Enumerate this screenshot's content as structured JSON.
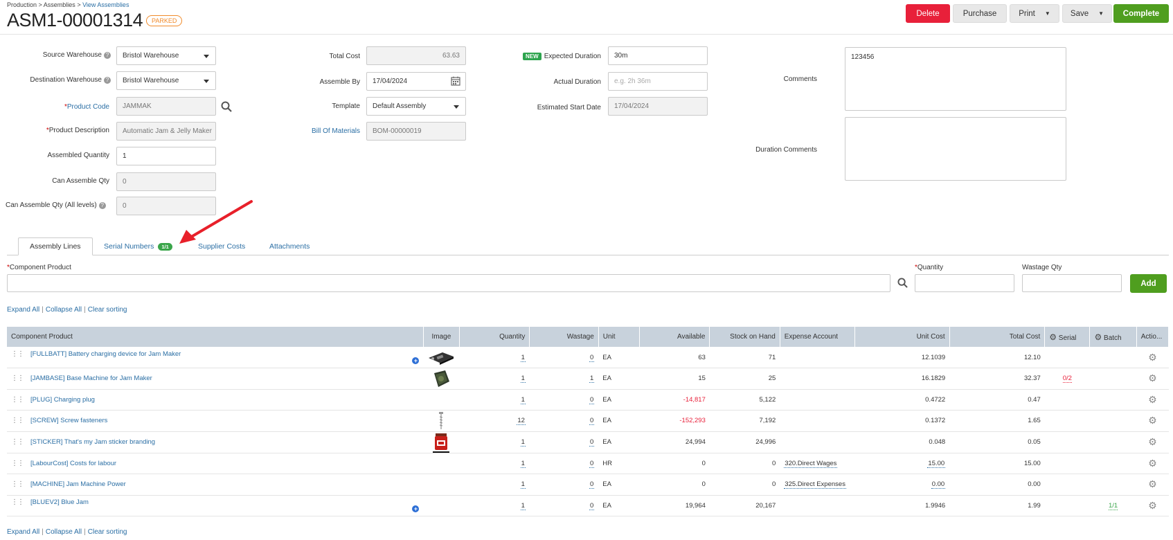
{
  "breadcrumb": {
    "part1": "Production",
    "sep": " > ",
    "part2": "Assemblies",
    "part3": "View Assemblies"
  },
  "header": {
    "title": "ASM1-00001314",
    "status": "PARKED"
  },
  "toolbar": {
    "delete": "Delete",
    "purchase": "Purchase",
    "print": "Print",
    "save": "Save",
    "complete": "Complete"
  },
  "form": {
    "source_warehouse_label": "Source Warehouse",
    "source_warehouse": "Bristol Warehouse",
    "destination_warehouse_label": "Destination Warehouse",
    "destination_warehouse": "Bristol Warehouse",
    "product_code_label": "Product Code",
    "product_code": "JAMMAK",
    "product_description_label": "Product Description",
    "product_description": "Automatic Jam & Jelly Maker",
    "assembled_quantity_label": "Assembled Quantity",
    "assembled_quantity": "1",
    "can_assemble_qty_label": "Can Assemble Qty",
    "can_assemble_qty": "0",
    "can_assemble_all_label": "Can Assemble Qty (All levels)",
    "can_assemble_all": "0",
    "total_cost_label": "Total Cost",
    "total_cost": "63.63",
    "assemble_by_label": "Assemble By",
    "assemble_by": "17/04/2024",
    "template_label": "Template",
    "template": "Default Assembly",
    "bom_label": "Bill Of Materials",
    "bom": "BOM-00000019",
    "new_badge": "NEW",
    "expected_duration_label": "Expected Duration",
    "expected_duration": "30m",
    "actual_duration_label": "Actual Duration",
    "actual_duration_placeholder": "e.g. 2h 36m",
    "estimated_start_label": "Estimated Start Date",
    "estimated_start": "17/04/2024",
    "comments_label": "Comments",
    "comments": "123456",
    "duration_comments_label": "Duration Comments",
    "duration_comments": ""
  },
  "tabs": {
    "assembly_lines": "Assembly Lines",
    "serial_numbers": "Serial Numbers",
    "serial_count": "1/1",
    "supplier_costs": "Supplier Costs",
    "attachments": "Attachments"
  },
  "add_line": {
    "component_label": "Component Product",
    "quantity_label": "Quantity",
    "wastage_label": "Wastage Qty",
    "add": "Add"
  },
  "links": {
    "expand": "Expand All",
    "collapse": "Collapse All",
    "clear": "Clear sorting",
    "sep": "|"
  },
  "columns": [
    "Component Product",
    "Image",
    "Quantity",
    "Wastage",
    "Unit",
    "Available",
    "Stock on Hand",
    "Expense Account",
    "Unit Cost",
    "Total Cost",
    "Serial",
    "Batch",
    "Actio..."
  ],
  "rows": [
    {
      "product": "[FULLBATT] Battery charging device for Jam Maker",
      "qty": "1",
      "wastage": "0",
      "unit": "EA",
      "available": "63",
      "soh": "71",
      "expense": "",
      "unit_cost": "12.1039",
      "total": "12.10",
      "serial": "",
      "batch": ""
    },
    {
      "product": "[JAMBASE] Base Machine for Jam Maker",
      "qty": "1",
      "wastage": "1",
      "unit": "EA",
      "available": "15",
      "soh": "25",
      "expense": "",
      "unit_cost": "16.1829",
      "total": "32.37",
      "serial": "0/2",
      "batch": ""
    },
    {
      "product": "[PLUG] Charging plug",
      "qty": "1",
      "wastage": "0",
      "unit": "EA",
      "available": "-14,817",
      "soh": "5,122",
      "expense": "",
      "unit_cost": "0.4722",
      "total": "0.47",
      "serial": "",
      "batch": ""
    },
    {
      "product": "[SCREW] Screw fasteners",
      "qty": "12",
      "wastage": "0",
      "unit": "EA",
      "available": "-152,293",
      "soh": "7,192",
      "expense": "",
      "unit_cost": "0.1372",
      "total": "1.65",
      "serial": "",
      "batch": ""
    },
    {
      "product": "[STICKER] That's my Jam sticker branding",
      "qty": "1",
      "wastage": "0",
      "unit": "EA",
      "available": "24,994",
      "soh": "24,996",
      "expense": "",
      "unit_cost": "0.048",
      "total": "0.05",
      "serial": "",
      "batch": ""
    },
    {
      "product": "[LabourCost] Costs for labour",
      "qty": "1",
      "wastage": "0",
      "unit": "HR",
      "available": "0",
      "soh": "0",
      "expense": "320.Direct Wages",
      "unit_cost": "15.00",
      "total": "15.00",
      "serial": "",
      "batch": ""
    },
    {
      "product": "[MACHINE] Jam Machine Power",
      "qty": "1",
      "wastage": "0",
      "unit": "EA",
      "available": "0",
      "soh": "0",
      "expense": "325.Direct Expenses",
      "unit_cost": "0.00",
      "total": "0.00",
      "serial": "",
      "batch": ""
    },
    {
      "product": "[BLUEV2] Blue Jam",
      "qty": "1",
      "wastage": "0",
      "unit": "EA",
      "available": "19,964",
      "soh": "20,167",
      "expense": "",
      "unit_cost": "1.9946",
      "total": "1.99",
      "serial": "",
      "batch": "1/1"
    }
  ],
  "icons": [
    "help-icon",
    "search-icon",
    "calendar-icon",
    "plus-icon",
    "drag-handle-icon",
    "gear-icon",
    "arrow-annotation"
  ],
  "colors": {
    "delete": "#e8203a",
    "complete": "#4f9e1f",
    "link": "#2a6ea4",
    "parked": "#f08a2a",
    "annotation": "#e8202a"
  }
}
